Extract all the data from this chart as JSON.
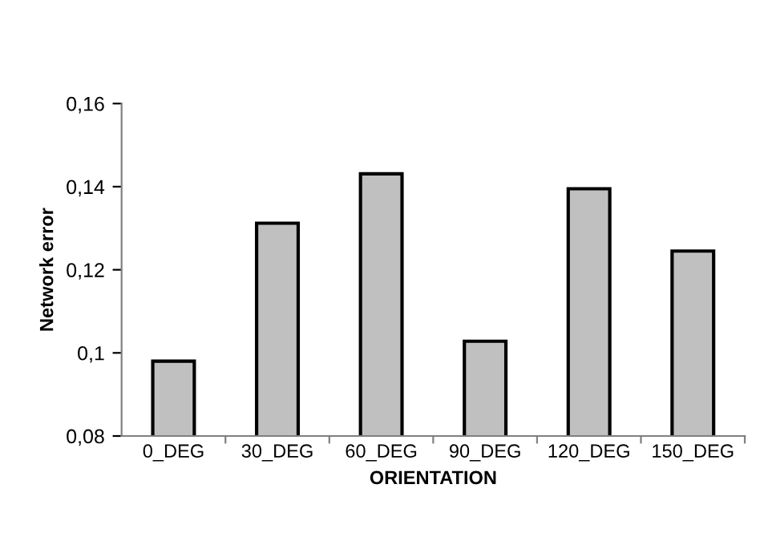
{
  "chart_data": {
    "type": "bar",
    "xlabel": "ORIENTATION",
    "ylabel": "Network error",
    "categories": [
      "0_DEG",
      "30_DEG",
      "60_DEG",
      "90_DEG",
      "120_DEG",
      "150_DEG"
    ],
    "values": [
      0.098,
      0.1312,
      0.1431,
      0.1028,
      0.1395,
      0.1245
    ],
    "color": "#c0c0c0",
    "ylim": [
      0.08,
      0.16
    ],
    "yticks": [
      {
        "value": 0.08,
        "label": "0,08"
      },
      {
        "value": 0.1,
        "label": "0,1"
      },
      {
        "value": 0.12,
        "label": "0,12"
      },
      {
        "value": 0.14,
        "label": "0,14"
      },
      {
        "value": 0.16,
        "label": "0,16"
      }
    ],
    "grid": false,
    "legend": false
  }
}
